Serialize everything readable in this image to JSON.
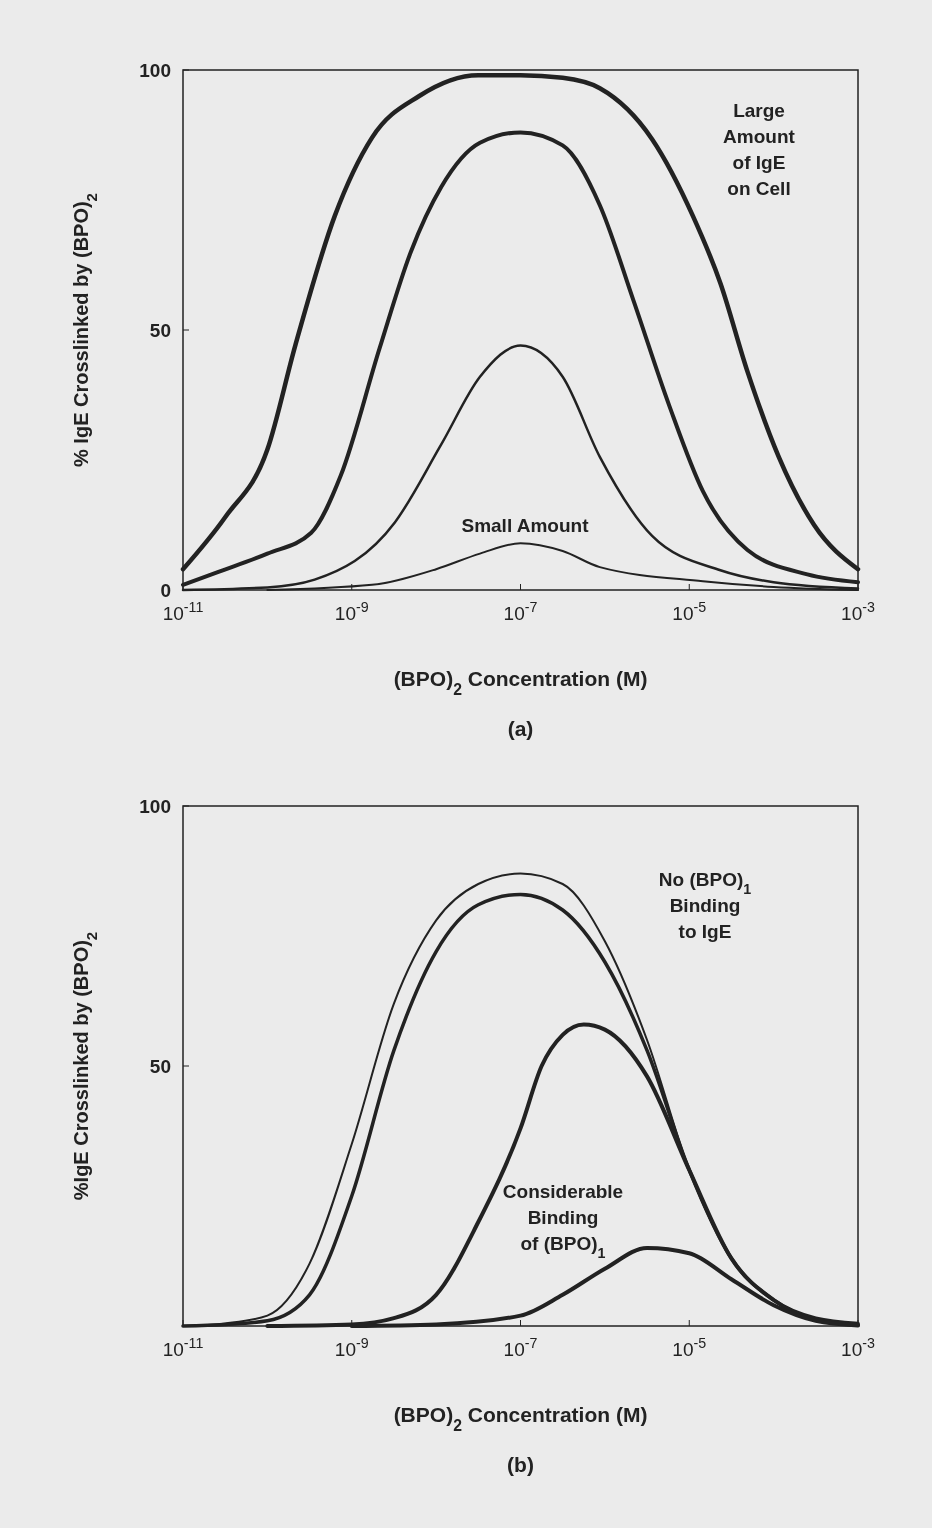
{
  "chart_data": [
    {
      "type": "line",
      "xlabel": "(BPO)$_{2}$ Concentration (M)",
      "ylabel": "% IgE Crosslinked by (BPO)$_{2}$",
      "log": "x",
      "xlim": [
        1e-11,
        0.001
      ],
      "ylim": [
        0,
        100
      ],
      "xticks": [
        {
          "value": 1e-11,
          "label": "10$^{-11}$"
        },
        {
          "value": 1e-09,
          "label": "10$^{-9}$"
        },
        {
          "value": 1e-07,
          "label": "10$^{-7}$"
        },
        {
          "value": 1e-05,
          "label": "10$^{-5}$"
        },
        {
          "value": 0.001,
          "label": "10$^{-3}$"
        }
      ],
      "yticks": [
        0,
        50,
        100
      ],
      "grid": false,
      "marker": "none",
      "line_style": "solid",
      "series": [
        {
          "color": "#222222",
          "x": [
            1e-11,
            3.16e-11,
            1e-10,
            2.14e-10,
            6.31e-10,
            1.74e-09,
            6.31e-09,
            3.16e-08,
            1e-07,
            3.16e-07,
            8.71e-07,
            3.63e-06,
            1.1e-05,
            2.34e-05,
            4.9e-05,
            0.000115,
            0.000302,
            0.001
          ],
          "values": [
            4,
            14,
            27,
            47,
            72,
            87,
            95,
            99,
            99,
            98.5,
            96.5,
            86.7,
            72,
            59,
            42,
            25.6,
            12.5,
            4
          ]
        },
        {
          "color": "#222222",
          "x": [
            1e-11,
            2.63e-11,
            1e-10,
            3.31e-10,
            7.41e-10,
            2.14e-09,
            5.01e-09,
            1.15e-08,
            3.31e-08,
            1e-07,
            3.16e-07,
            8.71e-07,
            2.19e-06,
            5.75e-06,
            1.45e-05,
            4.9e-05,
            0.000251,
            0.001
          ],
          "values": [
            1,
            3.5,
            7,
            11,
            22,
            46.5,
            65,
            77.5,
            86,
            88,
            85.5,
            74,
            55.6,
            35.6,
            19,
            7.7,
            3,
            1.5
          ]
        },
        {
          "color": "#222222",
          "x": [
            1e-11,
            1e-10,
            3.63e-10,
            3.24e-09,
            1.15e-08,
            3.31e-08,
            1e-07,
            3.16e-07,
            8.71e-07,
            3.63e-06,
            2.34e-05,
            0.0001,
            0.001
          ],
          "values": [
            0,
            0.5,
            2,
            13,
            28,
            41,
            47,
            41,
            25.6,
            10.4,
            3.8,
            1.5,
            0.3
          ]
        },
        {
          "color": "#222222",
          "x": [
            1e-10,
            1.74e-09,
            1e-08,
            3.31e-08,
            1e-07,
            3.16e-07,
            8.71e-07,
            1.45e-05,
            0.0001,
            0.001
          ],
          "values": [
            0,
            1,
            4,
            7,
            9,
            7.5,
            4.4,
            1.7,
            0.6,
            0
          ]
        }
      ],
      "annotations": [
        "Large\nAmount\nof IgE\non Cell",
        "Small Amount",
        "(a)"
      ]
    },
    {
      "type": "line",
      "xlabel": "(BPO)$_{2}$ Concentration (M)",
      "ylabel": "%IgE Crosslinked by (BPO)$_{2}$",
      "log": "x",
      "xlim": [
        1e-11,
        0.001
      ],
      "ylim": [
        0,
        100
      ],
      "xticks": [
        {
          "value": 1e-11,
          "label": "10$^{-11}$"
        },
        {
          "value": 1e-09,
          "label": "10$^{-9}$"
        },
        {
          "value": 1e-07,
          "label": "10$^{-7}$"
        },
        {
          "value": 1e-05,
          "label": "10$^{-5}$"
        },
        {
          "value": 0.001,
          "label": "10$^{-3}$"
        }
      ],
      "yticks": [
        50,
        100
      ],
      "grid": false,
      "marker": "none",
      "line_style": "solid",
      "series": [
        {
          "color": "#222222",
          "x": [
            1e-11,
            3.16e-11,
            1e-10,
            3.16e-10,
            1e-09,
            3.16e-09,
            1e-08,
            3.16e-08,
            1e-07,
            3.16e-07,
            1e-06,
            3.16e-06,
            1e-05,
            3.16e-05,
            0.0001,
            0.000316,
            0.001
          ],
          "values": [
            0,
            0.5,
            2,
            12,
            35,
            62,
            78,
            85,
            87,
            85,
            74,
            55,
            30,
            13,
            5,
            1.5,
            0.3
          ]
        },
        {
          "color": "#222222",
          "x": [
            1e-11,
            3.16e-11,
            1e-10,
            3.16e-10,
            1e-09,
            3.16e-09,
            1e-08,
            3.16e-08,
            1e-07,
            3.16e-07,
            1e-06,
            3.16e-06,
            1e-05,
            3.16e-05,
            0.0001,
            0.000316,
            0.001
          ],
          "values": [
            0,
            0.3,
            1,
            6,
            25,
            53,
            72,
            81,
            83,
            80,
            70,
            53,
            30,
            13,
            5,
            1.5,
            0.5
          ]
        },
        {
          "color": "#222222",
          "x": [
            1e-10,
            1e-09,
            3.16e-09,
            1e-08,
            3.16e-08,
            1e-07,
            1.78e-07,
            3.16e-07,
            5.62e-07,
            1e-06,
            3.16e-06,
            1e-05,
            3.16e-05,
            0.0001,
            0.000316,
            0.001
          ],
          "values": [
            0,
            0.3,
            1.5,
            6,
            20,
            38,
            50,
            56,
            58,
            57,
            48,
            30,
            13,
            5,
            1.2,
            0.2
          ]
        },
        {
          "color": "#222222",
          "x": [
            1e-09,
            1e-08,
            1e-07,
            3.16e-07,
            1e-06,
            3.16e-06,
            1e-05,
            3.16e-05,
            0.0001,
            0.000316,
            0.001
          ],
          "values": [
            0,
            0.3,
            2,
            6,
            11,
            15,
            14,
            9,
            4,
            1,
            0.1
          ]
        }
      ],
      "annotations": [
        "No (BPO)$_{1}$\nBinding\nto IgE",
        "Considerable\nBinding\nof (BPO)$_{1}$",
        "(b)"
      ]
    }
  ]
}
